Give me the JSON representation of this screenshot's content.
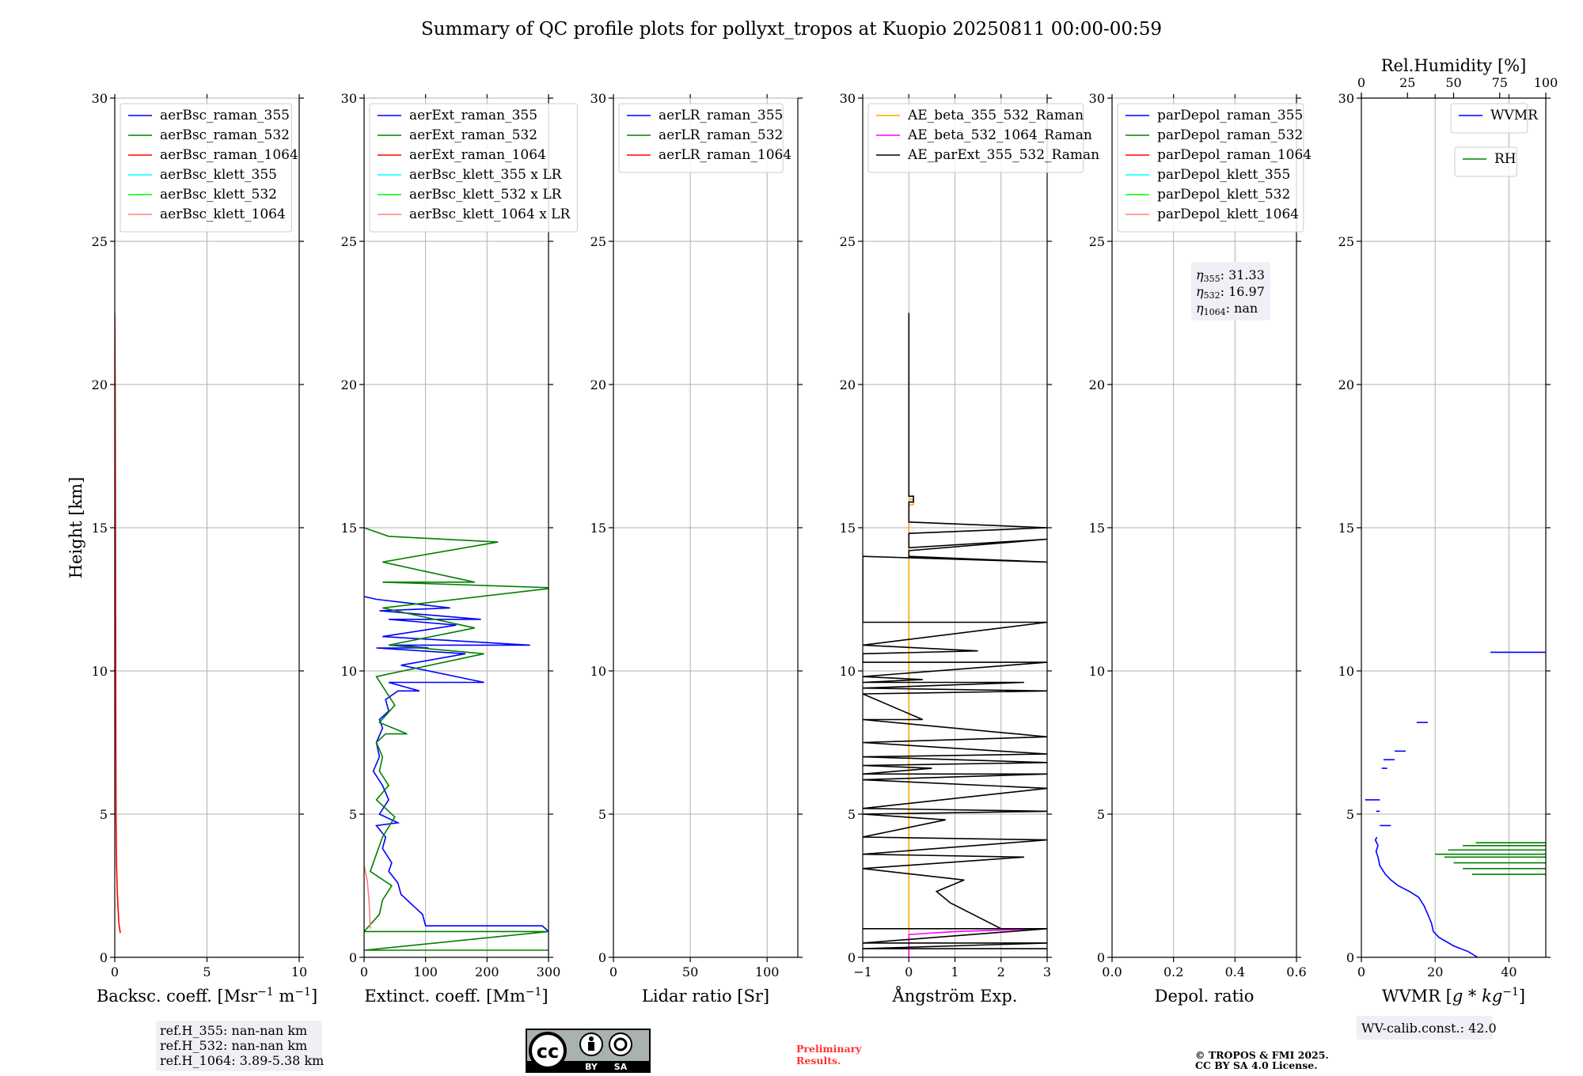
{
  "title": "Summary of QC profile plots for pollyxt_tropos at Kuopio 20250811 00:00-00:59",
  "colors": {
    "raman_355": "#0000ff",
    "raman_532": "#008000",
    "raman_1064": "#ff0000",
    "klett_355": "#00ffff",
    "klett_532": "#00ff00",
    "klett_1064": "#ff8080",
    "ae_beta_355_532": "#ffa500",
    "ae_beta_532_1064": "#ff00ff",
    "ae_parext": "#000000",
    "grid": "#b0b0b0",
    "info_box": "#eef0f5",
    "preliminary": "#ff3333"
  },
  "chart_data": [
    {
      "id": "bsc",
      "type": "line",
      "ylabel": "Height [km]",
      "xlabel": "Backsc. coeff. [Msr$^{-1}$ m$^{-1}$]",
      "xlabel_main": "Backsc. coeff. [Msr",
      "xlabel_sup1": "−1",
      "xlabel_mid": " m",
      "xlabel_sup2": "−1",
      "xlabel_end": "]",
      "xlim": [
        0,
        10
      ],
      "ylim": [
        0,
        30
      ],
      "grid": true,
      "xticks": [
        0,
        5,
        10
      ],
      "yticks": [
        0,
        5,
        10,
        15,
        20,
        25,
        30
      ],
      "legend": [
        "aerBsc_raman_355",
        "aerBsc_raman_532",
        "aerBsc_raman_1064",
        "aerBsc_klett_355",
        "aerBsc_klett_532",
        "aerBsc_klett_1064"
      ],
      "legend_colors": [
        "#0000ff",
        "#008000",
        "#ff0000",
        "#00ffff",
        "#00ff00",
        "#ff8080"
      ],
      "series": [
        {
          "name": "aerBsc_raman_1064",
          "color": "#ff0000",
          "x": [
            0.3,
            0.22,
            0.14,
            0.1,
            0.07,
            0.05,
            0.04,
            0.02,
            0.0
          ],
          "y": [
            0.85,
            1.2,
            2.2,
            3.2,
            5,
            10,
            15,
            20,
            22.5
          ]
        }
      ],
      "info": [
        "ref.H_355: nan-nan km",
        "ref.H_532: nan-nan km",
        "ref.H_1064: 3.89-5.38 km"
      ]
    },
    {
      "id": "ext",
      "type": "line",
      "xlabel_main": "Extinct. coeff. [Mm",
      "xlabel_sup1": "−1",
      "xlabel_end": "]",
      "xlim": [
        0,
        300
      ],
      "ylim": [
        0,
        30
      ],
      "grid": true,
      "xticks": [
        0,
        100,
        200,
        300
      ],
      "yticks": [
        0,
        5,
        10,
        15,
        20,
        25,
        30
      ],
      "legend": [
        "aerExt_raman_355",
        "aerExt_raman_532",
        "aerExt_raman_1064",
        "aerBsc_klett_355 x LR",
        "aerBsc_klett_532 x LR",
        "aerBsc_klett_1064 x LR"
      ],
      "legend_colors": [
        "#0000ff",
        "#008000",
        "#ff0000",
        "#00ffff",
        "#00ff00",
        "#ff8080"
      ],
      "series": [
        {
          "name": "aerExt_raman_355",
          "color": "#0000ff",
          "x": [
            300,
            290,
            100,
            95,
            60,
            55,
            40,
            45,
            30,
            35,
            20,
            55,
            25,
            40,
            30,
            15,
            25,
            20,
            30,
            25,
            40,
            35,
            55,
            90,
            40,
            195,
            60,
            165,
            20,
            105,
            50,
            270,
            30,
            150,
            40,
            190,
            25,
            140,
            20,
            0
          ],
          "y": [
            0.9,
            1.1,
            1.1,
            1.5,
            2.2,
            2.6,
            3.0,
            3.3,
            3.8,
            4.2,
            4.6,
            4.7,
            5.0,
            5.5,
            6.0,
            6.5,
            7.0,
            7.5,
            8.0,
            8.3,
            8.6,
            9.0,
            9.3,
            9.3,
            9.6,
            9.6,
            10.2,
            10.6,
            10.8,
            10.8,
            10.9,
            10.9,
            11.2,
            11.6,
            11.8,
            11.8,
            12.1,
            12.2,
            12.5,
            12.6
          ]
        },
        {
          "name": "aerExt_raman_532",
          "color": "#008000",
          "x": [
            300,
            0,
            300,
            0,
            25,
            30,
            45,
            10,
            20,
            30,
            50,
            20,
            40,
            25,
            30,
            20,
            35,
            70,
            25,
            50,
            35,
            20,
            195,
            40,
            180,
            30,
            310,
            30,
            180,
            30,
            218,
            40,
            0
          ],
          "y": [
            0.25,
            0.25,
            0.9,
            0.9,
            1.5,
            2.0,
            2.5,
            3.0,
            3.6,
            4.2,
            4.9,
            5.5,
            6.0,
            6.5,
            7.0,
            7.5,
            7.8,
            7.8,
            8.2,
            8.8,
            9.3,
            9.8,
            10.6,
            10.9,
            11.5,
            12.2,
            12.9,
            13.1,
            13.1,
            13.8,
            14.5,
            14.7,
            15.0
          ]
        },
        {
          "name": "aerBsc_klett_1064 x LR",
          "color": "#ff8080",
          "x": [
            10,
            8,
            5,
            2,
            0
          ],
          "y": [
            1.0,
            2.0,
            2.7,
            3.0,
            3.2
          ]
        }
      ]
    },
    {
      "id": "lr",
      "type": "line",
      "xlabel_main": "Lidar ratio [Sr]",
      "xlim": [
        0,
        120
      ],
      "ylim": [
        0,
        30
      ],
      "grid": true,
      "xticks": [
        0,
        50,
        100
      ],
      "yticks": [
        0,
        5,
        10,
        15,
        20,
        25,
        30
      ],
      "legend": [
        "aerLR_raman_355",
        "aerLR_raman_532",
        "aerLR_raman_1064"
      ],
      "legend_colors": [
        "#0000ff",
        "#008000",
        "#ff0000"
      ],
      "series": []
    },
    {
      "id": "ae",
      "type": "line",
      "xlabel_main": "Ångström Exp.",
      "xlim": [
        -1,
        3
      ],
      "ylim": [
        0,
        30
      ],
      "grid": true,
      "xticks": [
        -1,
        0,
        1,
        2,
        3
      ],
      "xticklabels": [
        "−1",
        "0",
        "1",
        "2",
        "3"
      ],
      "yticks": [
        0,
        5,
        10,
        15,
        20,
        25,
        30
      ],
      "legend": [
        "AE_beta_355_532_Raman",
        "AE_beta_532_1064_Raman",
        "AE_parExt_355_532_Raman"
      ],
      "legend_colors": [
        "#ffa500",
        "#ff00ff",
        "#000000"
      ],
      "series": [
        {
          "name": "AE_beta_355_532_Raman",
          "color": "#ffa500",
          "x": [
            0,
            0,
            0.1,
            0.1,
            0
          ],
          "y": [
            0,
            15.8,
            15.8,
            16.0,
            16.0
          ]
        },
        {
          "name": "AE_beta_532_1064_Raman",
          "color": "#ff00ff",
          "x": [
            0,
            0,
            0.05,
            1.0,
            3.0
          ],
          "y": [
            0,
            0.8,
            0.8,
            0.9,
            1.0
          ]
        },
        {
          "name": "AE_parExt_355_532_Raman",
          "color": "#000000",
          "x": [
            0,
            0,
            0.1,
            0.1,
            0,
            0,
            3,
            0,
            0,
            3,
            0,
            0,
            3,
            -1,
            -1,
            3,
            -1,
            1.5,
            -1,
            -1,
            3,
            -1,
            0.3,
            -1,
            2.5,
            -1,
            3,
            -1,
            0.3,
            -1,
            3,
            -1,
            3,
            -1,
            3,
            -1,
            0.5,
            -1,
            3,
            -1,
            3,
            -1,
            3,
            -1,
            0.8,
            -1,
            3,
            -1,
            2.5,
            -1,
            1.2,
            0.6,
            0.9,
            2.0,
            -1,
            3,
            -1,
            3,
            -1,
            2.5,
            -1,
            3,
            -1,
            3
          ],
          "y": [
            22.5,
            16.1,
            16.1,
            15.9,
            15.9,
            15.2,
            15.0,
            14.8,
            14.3,
            14.6,
            14.2,
            14.0,
            13.8,
            14.0,
            11.7,
            11.7,
            10.9,
            10.7,
            10.6,
            10.3,
            10.3,
            9.8,
            9.7,
            9.6,
            9.6,
            9.4,
            9.3,
            9.2,
            8.3,
            8.3,
            7.7,
            7.5,
            7.1,
            7.0,
            6.8,
            6.7,
            6.6,
            6.4,
            6.4,
            6.2,
            5.9,
            5.2,
            5.1,
            5.0,
            4.8,
            4.2,
            4.1,
            3.6,
            3.5,
            3.1,
            2.7,
            2.3,
            1.9,
            1.0,
            1.0,
            1.0,
            0.5,
            0.5,
            0.3,
            0.3,
            0.3,
            0.3,
            0.3,
            0.3
          ]
        }
      ]
    },
    {
      "id": "dep",
      "type": "line",
      "xlabel_main": "Depol. ratio",
      "xlim": [
        0,
        0.6
      ],
      "ylim": [
        0,
        30
      ],
      "grid": true,
      "xticks": [
        0,
        0.2,
        0.4,
        0.6
      ],
      "xticklabels": [
        "0.0",
        "0.2",
        "0.4",
        "0.6"
      ],
      "yticks": [
        0,
        5,
        10,
        15,
        20,
        25,
        30
      ],
      "legend": [
        "parDepol_raman_355",
        "parDepol_raman_532",
        "parDepol_raman_1064",
        "parDepol_klett_355",
        "parDepol_klett_532",
        "parDepol_klett_1064"
      ],
      "legend_colors": [
        "#0000ff",
        "#008000",
        "#ff0000",
        "#00ffff",
        "#00ff00",
        "#ff8080"
      ],
      "series": [],
      "info_eta": [
        {
          "sym": "η",
          "sub": "355",
          "val": ": 31.33"
        },
        {
          "sym": "η",
          "sub": "532",
          "val": ": 16.97"
        },
        {
          "sym": "η",
          "sub": "1064",
          "val": ": nan"
        }
      ]
    },
    {
      "id": "wv",
      "type": "line",
      "xlabel_pre": "WVMR [",
      "xlabel_ital": "g * kg",
      "xlabel_sup1": "−1",
      "xlabel_end": "]",
      "xlim": [
        0,
        50
      ],
      "ylim": [
        0,
        30
      ],
      "grid": true,
      "xticks": [
        0,
        20,
        40
      ],
      "yticks": [
        0,
        5,
        10,
        15,
        20,
        25,
        30
      ],
      "top_axis_label": "Rel.Humidity [%]",
      "top_xlim": [
        0,
        100
      ],
      "top_xticks": [
        0,
        25,
        50,
        75,
        100
      ],
      "legend": [
        "WVMR"
      ],
      "legend_colors": [
        "#0000ff"
      ],
      "legend2": [
        "RH"
      ],
      "legend2_colors": [
        "#008000"
      ],
      "series": [
        {
          "name": "WVMR",
          "color": "#0000ff",
          "x": [
            31.5,
            29,
            25,
            21,
            19.5,
            19,
            18,
            17,
            15.5,
            13,
            10,
            8,
            6.5,
            5,
            4.5,
            4,
            4.5,
            3.8,
            4.2
          ],
          "y": [
            0.0,
            0.2,
            0.4,
            0.7,
            0.9,
            1.2,
            1.5,
            1.8,
            2.1,
            2.3,
            2.5,
            2.7,
            2.9,
            3.2,
            3.5,
            3.7,
            3.9,
            4.1,
            4.2
          ]
        },
        {
          "name": "WVMR_upper",
          "color": "#0000ff",
          "segments": [
            [
              35,
              50,
              10.65
            ],
            [
              15,
              18,
              8.2
            ],
            [
              9,
              12,
              7.2
            ],
            [
              6,
              9,
              6.9
            ],
            [
              5.5,
              7,
              6.6
            ],
            [
              1,
              5,
              5.5
            ],
            [
              5,
              8,
              4.6
            ],
            [
              4,
              5,
              5.1
            ]
          ]
        },
        {
          "name": "RH",
          "color": "#008000",
          "segments": [
            [
              60,
              100,
              2.9
            ],
            [
              55,
              100,
              3.1
            ],
            [
              50,
              100,
              3.3
            ],
            [
              45,
              100,
              3.5
            ],
            [
              40,
              100,
              3.6
            ],
            [
              47,
              100,
              3.75
            ],
            [
              55,
              100,
              3.9
            ],
            [
              62,
              100,
              4.0
            ]
          ]
        }
      ],
      "info": [
        "WV-calib.const.: 42.0"
      ]
    }
  ],
  "footer": {
    "preliminary_line1": "Preliminary",
    "preliminary_line2": "Results.",
    "copyright_line1": "© TROPOS & FMI 2025.",
    "copyright_line2": "CC BY SA 4.0 License.",
    "cc_logo_text": "cc",
    "cc_by": "BY",
    "cc_sa": "SA"
  }
}
